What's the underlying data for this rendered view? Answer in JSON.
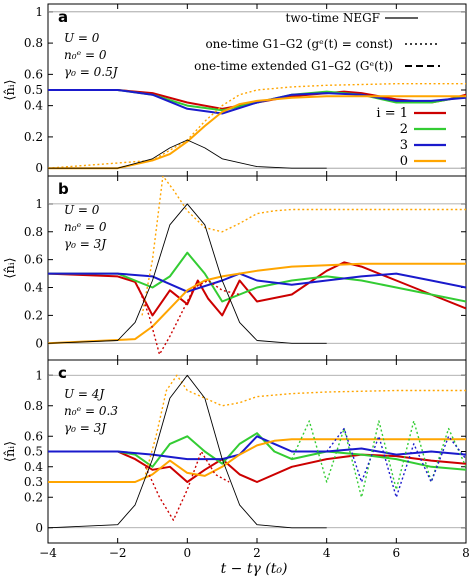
{
  "colors": {
    "red": "#cc0000",
    "green": "#33cc33",
    "blue": "#1a1acc",
    "orange": "#ffa500",
    "black": "#000000",
    "gray": "#808080"
  },
  "legend": {
    "line_styles": [
      {
        "label": "two-time NEGF",
        "dash": "solid"
      },
      {
        "label": "one-time G1–G2 (gᵉ(t) = const)",
        "dash": "dotted"
      },
      {
        "label": "one-time extended G1–G2 (Gᵉ(t))",
        "dash": "dashed"
      }
    ],
    "sites": [
      {
        "label": "i = 1",
        "color": "#cc0000"
      },
      {
        "label": "2",
        "color": "#33cc33"
      },
      {
        "label": "3",
        "color": "#1a1acc"
      },
      {
        "label": "0",
        "color": "#ffa500"
      }
    ]
  },
  "chart_data": [
    {
      "type": "line",
      "panel": "a",
      "ylabel": "⟨n̂ᵢ⟩",
      "xlim": [
        -4,
        8
      ],
      "ylim": [
        -0.05,
        1.05
      ],
      "yticks": [
        "0",
        "0.2",
        "0.4",
        "0.5",
        "0.6",
        "0.8",
        "1"
      ],
      "params": [
        "U = 0",
        "n₀ᵉ = 0",
        "γ₀ = 0.5J"
      ],
      "series": [
        {
          "site": "i = 1",
          "color": "red",
          "style": "solid",
          "x": [
            -4,
            -2,
            -1,
            0,
            1,
            2,
            3,
            4,
            4.5,
            5,
            6,
            7,
            7.5,
            8
          ],
          "y": [
            0.5,
            0.5,
            0.48,
            0.42,
            0.38,
            0.42,
            0.46,
            0.48,
            0.49,
            0.48,
            0.44,
            0.42,
            0.44,
            0.47
          ]
        },
        {
          "site": "2",
          "color": "green",
          "style": "solid",
          "x": [
            -4,
            -2,
            -1,
            0,
            1,
            2,
            3,
            4,
            5,
            6,
            7,
            8
          ],
          "y": [
            0.5,
            0.5,
            0.47,
            0.4,
            0.37,
            0.42,
            0.47,
            0.49,
            0.47,
            0.42,
            0.42,
            0.46
          ]
        },
        {
          "site": "3",
          "color": "blue",
          "style": "solid",
          "x": [
            -4,
            -2,
            -1,
            0,
            1,
            2,
            3,
            4,
            5,
            6,
            7,
            8
          ],
          "y": [
            0.5,
            0.5,
            0.47,
            0.38,
            0.35,
            0.42,
            0.47,
            0.48,
            0.47,
            0.43,
            0.43,
            0.45
          ]
        },
        {
          "site": "0",
          "color": "orange",
          "style": "solid",
          "x": [
            -4,
            -2,
            -1,
            -0.5,
            0,
            0.5,
            1,
            1.5,
            2,
            3,
            4,
            6,
            8
          ],
          "y": [
            0,
            0,
            0.05,
            0.09,
            0.17,
            0.27,
            0.36,
            0.41,
            0.43,
            0.45,
            0.46,
            0.46,
            0.46
          ]
        },
        {
          "site": "0",
          "color": "orange",
          "style": "dotted",
          "x": [
            -4,
            -1,
            0,
            0.5,
            1,
            1.5,
            2,
            3,
            4,
            6,
            8
          ],
          "y": [
            0,
            0.05,
            0.18,
            0.3,
            0.4,
            0.47,
            0.5,
            0.52,
            0.53,
            0.54,
            0.54
          ]
        },
        {
          "site": "pulse",
          "color": "black",
          "style": "solid",
          "x": [
            -4,
            -2,
            -1,
            -0.5,
            0,
            0.5,
            1,
            2,
            3,
            4
          ],
          "y": [
            0,
            0,
            0.06,
            0.13,
            0.18,
            0.13,
            0.06,
            0.01,
            0,
            0
          ]
        }
      ]
    },
    {
      "type": "line",
      "panel": "b",
      "ylabel": "⟨n̂ᵢ⟩",
      "xlim": [
        -4,
        8
      ],
      "ylim": [
        -0.12,
        1.2
      ],
      "yticks": [
        "0",
        "0.2",
        "0.4",
        "0.6",
        "0.8",
        "1"
      ],
      "params": [
        "U = 0",
        "n₀ᵉ = 0",
        "γ₀ = 3J"
      ],
      "series": [
        {
          "site": "i = 1",
          "color": "red",
          "style": "solid",
          "x": [
            -4,
            -2,
            -1.5,
            -1,
            -0.5,
            0,
            0.3,
            0.6,
            1,
            1.5,
            2,
            3,
            4,
            4.5,
            5,
            6,
            7,
            8
          ],
          "y": [
            0.5,
            0.48,
            0.44,
            0.2,
            0.38,
            0.28,
            0.45,
            0.32,
            0.2,
            0.45,
            0.3,
            0.35,
            0.52,
            0.58,
            0.55,
            0.45,
            0.35,
            0.25
          ]
        },
        {
          "site": "2",
          "color": "green",
          "style": "solid",
          "x": [
            -4,
            -2,
            -1,
            -0.5,
            0,
            0.5,
            1,
            2,
            3,
            4,
            5,
            6,
            7,
            8
          ],
          "y": [
            0.5,
            0.5,
            0.4,
            0.48,
            0.65,
            0.5,
            0.3,
            0.4,
            0.45,
            0.48,
            0.45,
            0.4,
            0.35,
            0.3
          ]
        },
        {
          "site": "3",
          "color": "blue",
          "style": "solid",
          "x": [
            -4,
            -2,
            -1,
            0,
            1,
            1.5,
            2,
            3,
            4,
            5,
            6,
            7,
            8
          ],
          "y": [
            0.5,
            0.5,
            0.48,
            0.37,
            0.45,
            0.5,
            0.45,
            0.42,
            0.45,
            0.48,
            0.5,
            0.45,
            0.4
          ]
        },
        {
          "site": "0",
          "color": "orange",
          "style": "solid",
          "x": [
            -4,
            -1.5,
            -1,
            -0.5,
            0,
            0.5,
            1,
            2,
            3,
            4,
            5,
            6,
            8
          ],
          "y": [
            0,
            0.03,
            0.12,
            0.25,
            0.38,
            0.45,
            0.48,
            0.52,
            0.55,
            0.56,
            0.57,
            0.57,
            0.57
          ]
        },
        {
          "site": "0",
          "color": "orange",
          "style": "dotted",
          "x": [
            -1.3,
            -1,
            -0.7,
            -0.4,
            0,
            0.5,
            1,
            1.5,
            2,
            2.5,
            3,
            4,
            8
          ],
          "y": [
            0.2,
            0.6,
            1.2,
            1.1,
            0.95,
            0.83,
            0.8,
            0.86,
            0.93,
            0.95,
            0.96,
            0.96,
            0.96
          ]
        },
        {
          "site": "i = 1",
          "color": "red",
          "style": "dotted",
          "x": [
            -1.4,
            -1.1,
            -0.8,
            -0.5,
            -0.2,
            0.2,
            0.6,
            1.0,
            1.5
          ],
          "y": [
            0.4,
            0.2,
            -0.08,
            0.05,
            0.2,
            0.4,
            0.45,
            0.38,
            0.35
          ]
        },
        {
          "site": "pulse",
          "color": "black",
          "style": "solid",
          "x": [
            -4,
            -2,
            -1.5,
            -1,
            -0.5,
            0,
            0.5,
            1,
            1.5,
            2,
            3,
            4
          ],
          "y": [
            0,
            0.02,
            0.15,
            0.45,
            0.85,
            1.0,
            0.85,
            0.45,
            0.15,
            0.02,
            0,
            0
          ]
        }
      ]
    },
    {
      "type": "line",
      "panel": "c",
      "ylabel": "⟨n̂ᵢ⟩",
      "xlim": [
        -4,
        8
      ],
      "ylim": [
        -0.1,
        1.1
      ],
      "yticks": [
        "0",
        "0.2",
        "0.3",
        "0.4",
        "0.5",
        "0.6",
        "0.8",
        "1"
      ],
      "params": [
        "U = 4J",
        "n₀ᵉ = 0.3",
        "γ₀ = 3J"
      ],
      "series": [
        {
          "site": "i = 1",
          "color": "red",
          "style": "solid",
          "x": [
            -4,
            -2,
            -1.5,
            -1,
            -0.5,
            0,
            0.5,
            1,
            1.5,
            2,
            3,
            4,
            5,
            6,
            7,
            8
          ],
          "y": [
            0.5,
            0.5,
            0.45,
            0.38,
            0.4,
            0.3,
            0.38,
            0.45,
            0.35,
            0.3,
            0.4,
            0.45,
            0.48,
            0.47,
            0.44,
            0.42
          ]
        },
        {
          "site": "2",
          "color": "green",
          "style": "solid",
          "x": [
            -4,
            -2,
            -1.5,
            -1,
            -0.5,
            0,
            0.5,
            1,
            1.5,
            2,
            2.5,
            3,
            4,
            5,
            6,
            7,
            8
          ],
          "y": [
            0.5,
            0.5,
            0.48,
            0.4,
            0.55,
            0.6,
            0.5,
            0.42,
            0.55,
            0.62,
            0.5,
            0.45,
            0.5,
            0.48,
            0.45,
            0.4,
            0.38
          ]
        },
        {
          "site": "3",
          "color": "blue",
          "style": "solid",
          "x": [
            -4,
            -2,
            -1,
            0,
            1,
            1.5,
            2,
            2.5,
            3,
            4,
            5,
            6,
            7,
            8
          ],
          "y": [
            0.5,
            0.5,
            0.48,
            0.45,
            0.45,
            0.48,
            0.6,
            0.55,
            0.5,
            0.5,
            0.52,
            0.48,
            0.5,
            0.48
          ]
        },
        {
          "site": "0",
          "color": "orange",
          "style": "solid",
          "x": [
            -4,
            -2,
            -1.5,
            -1,
            -0.5,
            0,
            0.5,
            1,
            1.5,
            2,
            2.5,
            3,
            4,
            5,
            6,
            8
          ],
          "y": [
            0.3,
            0.3,
            0.3,
            0.35,
            0.44,
            0.36,
            0.34,
            0.4,
            0.48,
            0.54,
            0.57,
            0.58,
            0.58,
            0.58,
            0.58,
            0.58
          ]
        },
        {
          "site": "0",
          "color": "orange",
          "style": "dotted",
          "x": [
            -1.2,
            -0.9,
            -0.6,
            -0.3,
            0,
            0.5,
            1,
            1.5,
            2,
            3,
            4,
            6,
            8
          ],
          "y": [
            0.35,
            0.6,
            0.9,
            1.0,
            0.9,
            0.85,
            0.8,
            0.82,
            0.86,
            0.88,
            0.89,
            0.9,
            0.9
          ]
        },
        {
          "site": "i = 1",
          "color": "red",
          "style": "dotted",
          "x": [
            -1.2,
            -0.8,
            -0.4,
            0,
            0.4,
            0.8,
            1.2
          ],
          "y": [
            0.4,
            0.2,
            0.05,
            0.25,
            0.5,
            0.35,
            0.3
          ]
        },
        {
          "site": "2",
          "color": "green",
          "style": "dotted",
          "x": [
            3,
            3.5,
            4,
            4.5,
            5,
            5.5,
            6,
            6.5,
            7,
            7.5,
            8
          ],
          "y": [
            0.45,
            0.7,
            0.3,
            0.65,
            0.2,
            0.7,
            0.25,
            0.7,
            0.3,
            0.65,
            0.4
          ]
        },
        {
          "site": "3",
          "color": "blue",
          "style": "dotted",
          "x": [
            4,
            4.5,
            5,
            5.5,
            6,
            6.5,
            7,
            7.5,
            8
          ],
          "y": [
            0.5,
            0.65,
            0.3,
            0.6,
            0.2,
            0.55,
            0.3,
            0.6,
            0.45
          ]
        },
        {
          "site": "pulse",
          "color": "black",
          "style": "solid",
          "x": [
            -4,
            -2,
            -1.5,
            -1,
            -0.5,
            0,
            0.5,
            1,
            1.5,
            2,
            3,
            4
          ],
          "y": [
            0,
            0.02,
            0.15,
            0.45,
            0.85,
            1.0,
            0.85,
            0.45,
            0.15,
            0.02,
            0,
            0
          ]
        }
      ]
    }
  ],
  "x_axis": {
    "label": "t − tγ (t₀)",
    "ticks": [
      "−4",
      "−2",
      "0",
      "2",
      "4",
      "6",
      "8"
    ],
    "tick_values": [
      -4,
      -2,
      0,
      2,
      4,
      6,
      8
    ]
  },
  "panel_letters": [
    "a",
    "b",
    "c"
  ]
}
